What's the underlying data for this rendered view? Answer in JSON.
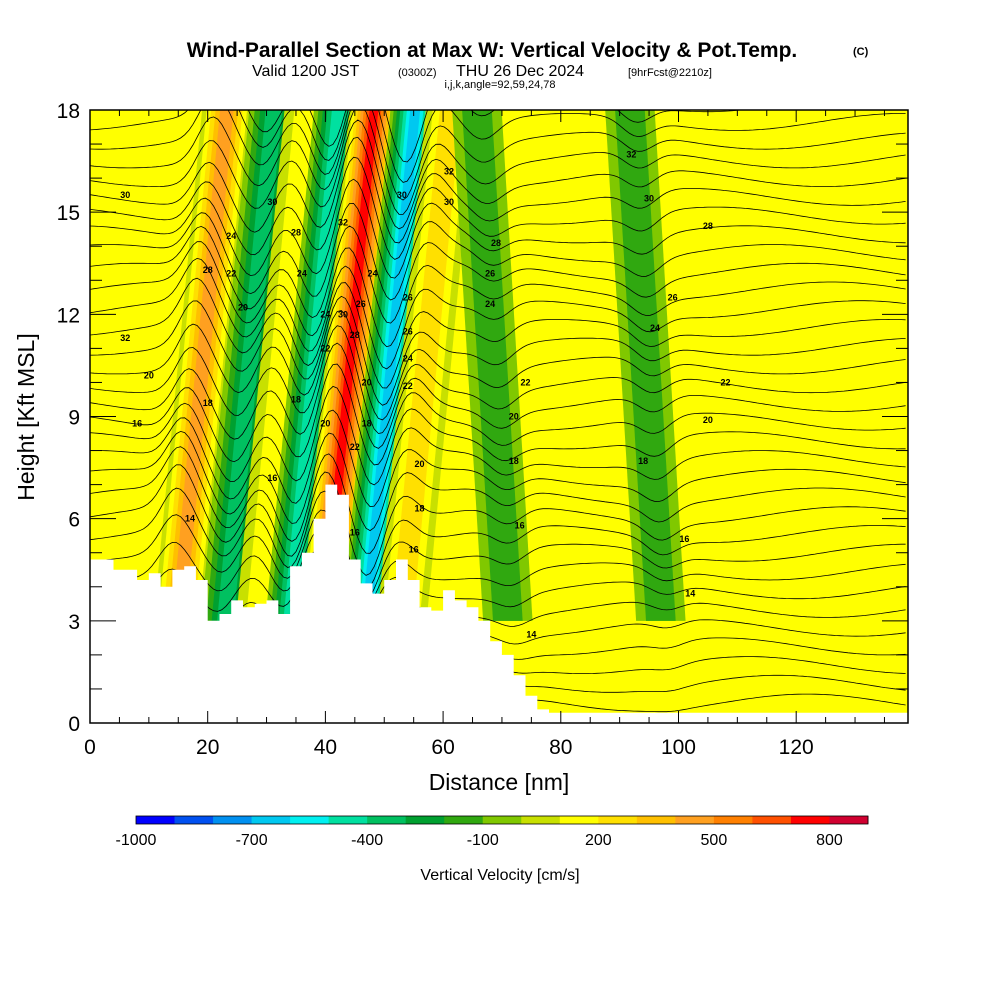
{
  "header": {
    "title": "Wind-Parallel Section at Max W: Vertical Velocity & Pot.Temp.",
    "copyright": "(C)",
    "subtitle_prefix": "Valid 1200 JST",
    "subtitle_utc": "(0300Z)",
    "subtitle_date": "THU 26 Dec 2024",
    "subtitle_fcst": "[9hrFcst@2210z]",
    "indices": "i,j,k,angle=92,59,24,78"
  },
  "chart_data": {
    "type": "heatmap",
    "title": "Wind-Parallel Section at Max W: Vertical Velocity & Pot.Temp.",
    "xlabel": "Distance [nm]",
    "ylabel": "Height [Kft MSL]",
    "xlim": [
      0,
      139
    ],
    "ylim": [
      0,
      18
    ],
    "xticks": [
      0,
      20,
      40,
      60,
      80,
      100,
      120
    ],
    "yticks": [
      0,
      3,
      6,
      9,
      12,
      15,
      18
    ],
    "colorbar": {
      "label": "Vertical Velocity [cm/s]",
      "tick_labels": [
        "-1000",
        "-700",
        "-400",
        "-100",
        "200",
        "500",
        "800"
      ],
      "tick_values": [
        -1000,
        -700,
        -400,
        -100,
        200,
        500,
        800
      ],
      "min": -1000,
      "max": 900,
      "step": 100,
      "colors": [
        "#0000ff",
        "#0050f0",
        "#0090f0",
        "#00c8f0",
        "#00f0f0",
        "#00e0a0",
        "#00c060",
        "#00a030",
        "#30a810",
        "#80c800",
        "#c8e000",
        "#ffff00",
        "#ffe000",
        "#ffc000",
        "#ffa020",
        "#ff8000",
        "#ff5000",
        "#ff0000",
        "#d00030",
        "#a00060",
        "#800080"
      ]
    },
    "vertical_velocity_bands": [
      {
        "center_x": 21,
        "sign": "up",
        "peak": 500
      },
      {
        "center_x": 29,
        "sign": "down",
        "peak": -400
      },
      {
        "center_x": 35,
        "sign": "up",
        "peak": 200
      },
      {
        "center_x": 40,
        "sign": "down",
        "peak": -500
      },
      {
        "center_x": 46,
        "sign": "up",
        "peak": 800
      },
      {
        "center_x": 53,
        "sign": "down",
        "peak": -700
      },
      {
        "center_x": 59,
        "sign": "up",
        "peak": 300
      },
      {
        "center_x": 71,
        "sign": "down",
        "peak": -200
      },
      {
        "center_x": 97,
        "sign": "down",
        "peak": -200
      }
    ],
    "theta_contour_labels": [
      "14",
      "16",
      "18",
      "20",
      "22",
      "24",
      "26",
      "28",
      "30",
      "32"
    ],
    "terrain": {
      "distance_nm": [
        0,
        4,
        8,
        10,
        12,
        14,
        16,
        18,
        20,
        22,
        24,
        26,
        28,
        30,
        32,
        34,
        36,
        38,
        40,
        42,
        44,
        46,
        48,
        50,
        52,
        54,
        56,
        58,
        60,
        62,
        64,
        66,
        68,
        70,
        72,
        74,
        76,
        78,
        80,
        90,
        100,
        110,
        120,
        130,
        139
      ],
      "height_kft": [
        4.8,
        4.5,
        4.2,
        4.4,
        4.0,
        4.5,
        4.6,
        4.2,
        3.0,
        3.2,
        3.6,
        3.4,
        3.5,
        3.6,
        3.2,
        4.6,
        5.0,
        6.0,
        7.0,
        6.7,
        4.8,
        4.1,
        3.8,
        4.2,
        4.8,
        4.2,
        3.4,
        3.3,
        3.9,
        3.6,
        3.4,
        3.0,
        2.4,
        2.0,
        1.4,
        0.8,
        0.4,
        0.3,
        0.3,
        0.3,
        0.3,
        0.3,
        0.3,
        0.3,
        0.3
      ]
    }
  },
  "colors": {
    "background_field": "#ffff00",
    "terrain": "#ffffff",
    "contour": "#000000"
  }
}
